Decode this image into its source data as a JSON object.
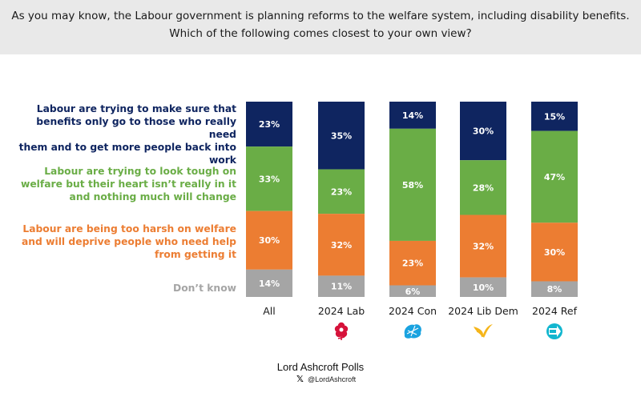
{
  "header": {
    "line1": "As you may know, the Labour government is planning reforms to the welfare system, including disability benefits.",
    "line2": "Which of the following comes closest to your own view?"
  },
  "legend": [
    {
      "lines": [
        "Labour are trying to make sure that",
        "benefits only go to those who really need",
        "them and to get more people back into",
        "work"
      ],
      "color": "#0f2560"
    },
    {
      "lines": [
        "Labour are trying to look tough on",
        "welfare but their heart isn’t really in it",
        "and nothing much will change"
      ],
      "color": "#6aad46"
    },
    {
      "lines": [
        "Labour are being too harsh on welfare",
        "and will deprive people who need help",
        "from getting it"
      ],
      "color": "#ec7d32"
    },
    {
      "lines": [
        "Don’t know"
      ],
      "color": "#a5a5a5"
    }
  ],
  "chart_data": {
    "type": "bar",
    "stacked": true,
    "categories": [
      "All",
      "2024 Lab",
      "2024 Con",
      "2024 Lib Dem",
      "2024 Ref"
    ],
    "series": [
      {
        "values": [
          23,
          35,
          14,
          30,
          15
        ],
        "color": "#0f2560"
      },
      {
        "values": [
          33,
          23,
          58,
          28,
          47
        ],
        "color": "#6aad46"
      },
      {
        "values": [
          30,
          32,
          23,
          32,
          30
        ],
        "color": "#ec7d32"
      },
      {
        "values": [
          14,
          11,
          6,
          10,
          8
        ],
        "color": "#a5a5a5"
      }
    ],
    "ylim": [
      0,
      100
    ],
    "grid": false,
    "legend_position": "left",
    "label_suffix": "%",
    "party_icons": [
      "",
      "labour-rose-icon",
      "conservative-tree-icon",
      "libdem-bird-icon",
      "reform-logo-icon"
    ]
  },
  "footer": {
    "title": "Lord Ashcroft Polls",
    "handle": "@LordAshcroft",
    "x_icon": "x-logo-icon"
  }
}
